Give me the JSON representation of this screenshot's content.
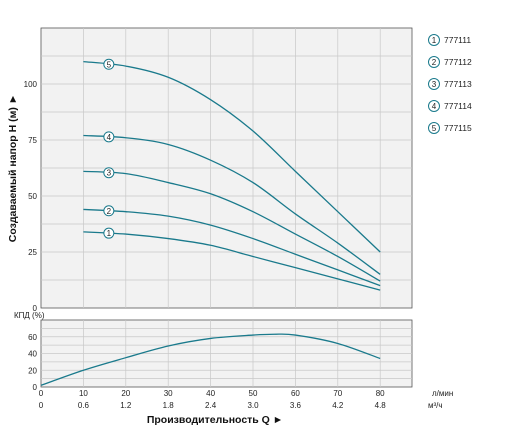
{
  "chart_data": [
    {
      "type": "line",
      "name": "head",
      "ylabel": "Создаваемый напор H (м) ►",
      "ylim": [
        0,
        125
      ],
      "y_ticks": [
        "0",
        "25",
        "50",
        "75",
        "100"
      ],
      "x_lpm": [
        10,
        20,
        30,
        40,
        50,
        60,
        70,
        80
      ],
      "x_ticks_lpm": [
        "0",
        "10",
        "20",
        "30",
        "40",
        "50",
        "60",
        "70",
        "80"
      ],
      "x_ticks_m3h": [
        "0",
        "0.6",
        "1.2",
        "1.8",
        "2.4",
        "3.0",
        "3.6",
        "4.2",
        "4.8"
      ],
      "grid": true,
      "series": [
        {
          "name": "777111",
          "marker": "1",
          "values": [
            34,
            33,
            31,
            28,
            23,
            18,
            13,
            8
          ]
        },
        {
          "name": "777112",
          "marker": "2",
          "values": [
            44,
            43,
            41,
            37,
            31,
            24,
            17,
            10
          ]
        },
        {
          "name": "777113",
          "marker": "3",
          "values": [
            61,
            60,
            56,
            51,
            43,
            33,
            23,
            12
          ]
        },
        {
          "name": "777114",
          "marker": "4",
          "values": [
            77,
            76,
            73,
            66,
            56,
            42,
            29,
            15
          ]
        },
        {
          "name": "777115",
          "marker": "5",
          "values": [
            110,
            108,
            103,
            93,
            79,
            61,
            43,
            25
          ]
        }
      ]
    },
    {
      "type": "line",
      "name": "efficiency",
      "ylabel": "КПД (%)",
      "ylim": [
        0,
        80
      ],
      "y_ticks": [
        "0",
        "20",
        "40",
        "60"
      ],
      "x_lpm": [
        0,
        10,
        20,
        30,
        40,
        50,
        55,
        60,
        70,
        80
      ],
      "values": [
        2,
        20,
        35,
        49,
        58,
        62,
        63,
        62,
        52,
        34
      ],
      "grid": true
    }
  ],
  "labels": {
    "x_title": "Производительность Q ►",
    "unit_lpm": "л/мин",
    "unit_m3h": "м³/ч"
  },
  "legend": [
    {
      "marker": "1",
      "label": "777111"
    },
    {
      "marker": "2",
      "label": "777112"
    },
    {
      "marker": "3",
      "label": "777113"
    },
    {
      "marker": "4",
      "label": "777114"
    },
    {
      "marker": "5",
      "label": "777115"
    }
  ],
  "colors": {
    "curve": "#1a7a8c",
    "grid": "#c8c8c8",
    "plot_bg": "#f2f2f2",
    "axis": "#555555"
  }
}
